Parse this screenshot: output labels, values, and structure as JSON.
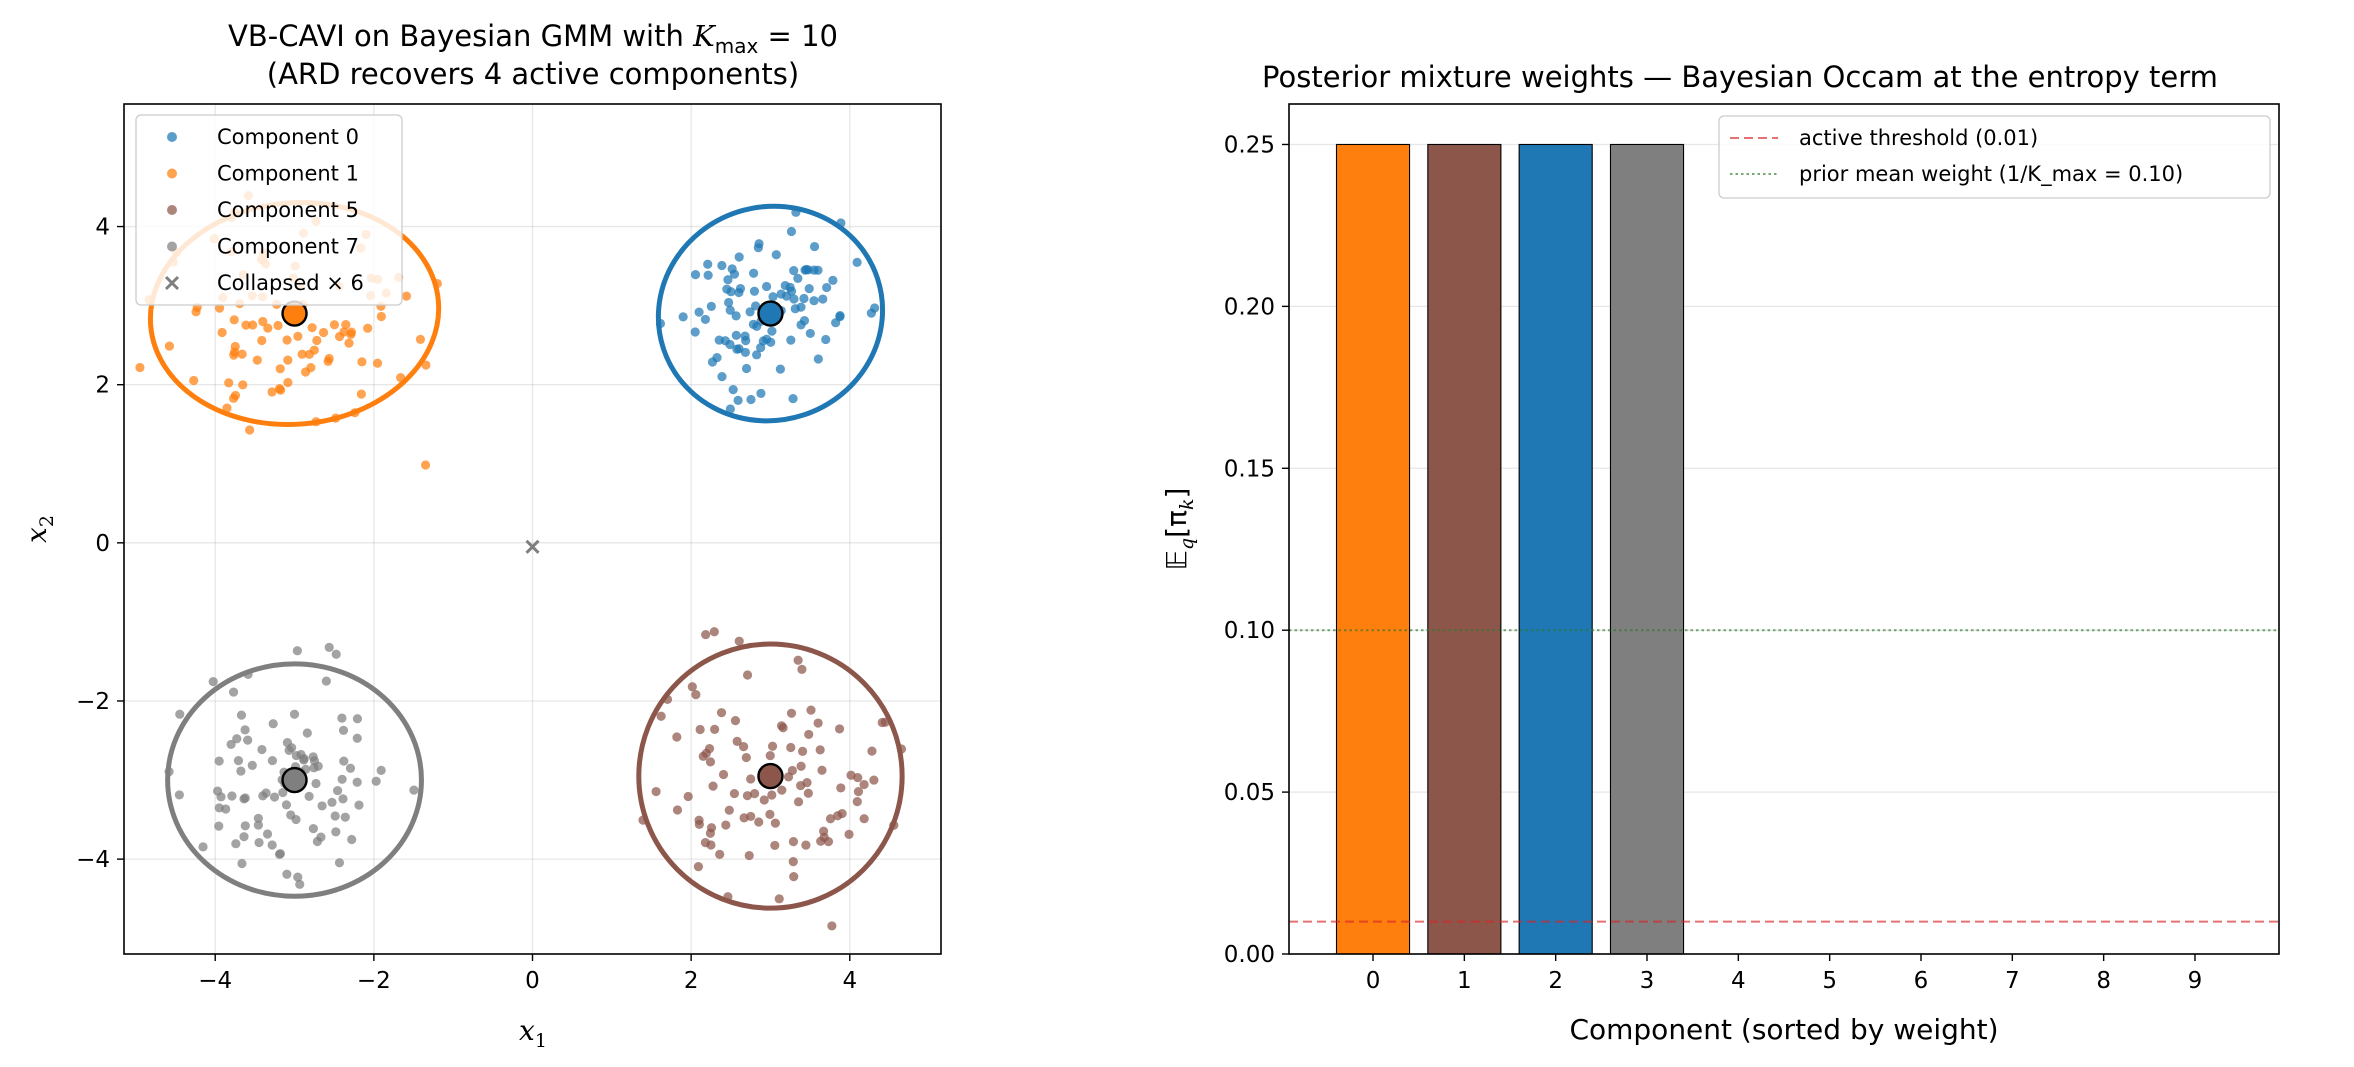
{
  "figure": {
    "background": "#ffffff"
  },
  "chart_data": [
    {
      "type": "scatter",
      "title_line1_prefix": "VB-CAVI on Bayesian GMM with ",
      "title_math": "K",
      "title_math_sub": "max",
      "title_math_suffix": " = 10",
      "title_line2": "(ARD recovers 4 active components)",
      "xlabel": "x",
      "xlabel_sub": "1",
      "ylabel": "x",
      "ylabel_sub": "2",
      "xlim": [
        -5.15,
        5.15
      ],
      "ylim": [
        -5.2,
        5.55
      ],
      "xticks": [
        -4,
        -2,
        0,
        2,
        4
      ],
      "yticks": [
        -4,
        -2,
        0,
        2,
        4
      ],
      "xtick_labels": [
        "−4",
        "−2",
        "0",
        "2",
        "4"
      ],
      "ytick_labels": [
        "−4",
        "−2",
        "0",
        "2",
        "4"
      ],
      "grid": true,
      "legend_position": "upper-left",
      "legend": [
        {
          "label": "Component 0",
          "marker": "dot",
          "color": "#1f77b4"
        },
        {
          "label": "Component 1",
          "marker": "dot",
          "color": "#ff7f0e"
        },
        {
          "label": "Component 5",
          "marker": "dot",
          "color": "#8c564b"
        },
        {
          "label": "Component 7",
          "marker": "dot",
          "color": "#7f7f7f"
        },
        {
          "label": "Collapsed × 6",
          "marker": "x",
          "color": "#7f7f7f"
        }
      ],
      "clusters": [
        {
          "name": "Component 0",
          "color": "#1f77b4",
          "mean": [
            3.0,
            2.9
          ],
          "ellipse": {
            "rx": 1.42,
            "ry": 1.35,
            "angle_deg": 18
          },
          "spread": [
            0.55,
            0.5
          ],
          "n_points": 100,
          "seed": 11
        },
        {
          "name": "Component 1",
          "color": "#ff7f0e",
          "mean": [
            -3.0,
            2.9
          ],
          "ellipse": {
            "rx": 1.82,
            "ry": 1.4,
            "angle_deg": 5
          },
          "spread": [
            0.72,
            0.62
          ],
          "n_points": 100,
          "seed": 23
        },
        {
          "name": "Component 5",
          "color": "#8c564b",
          "mean": [
            3.0,
            -2.95
          ],
          "ellipse": {
            "rx": 1.66,
            "ry": 1.67,
            "angle_deg": 0
          },
          "spread": [
            0.68,
            0.7
          ],
          "n_points": 100,
          "seed": 37
        },
        {
          "name": "Component 7",
          "color": "#7f7f7f",
          "mean": [
            -3.0,
            -3.0
          ],
          "ellipse": {
            "rx": 1.6,
            "ry": 1.47,
            "angle_deg": 0
          },
          "spread": [
            0.62,
            0.58
          ],
          "n_points": 100,
          "seed": 41
        }
      ],
      "collapsed_points": [
        [
          0.0,
          -0.05
        ]
      ],
      "collapsed_color": "#7f7f7f"
    },
    {
      "type": "bar",
      "title": "Posterior mixture weights — Bayesian Occam at the entropy term",
      "xlabel": "Component (sorted by weight)",
      "ylabel": "𝔼",
      "ylabel_sub": "q",
      "ylabel_rest": "[π",
      "ylabel_rest_sub": "k",
      "ylabel_close": "]",
      "categories": [
        0,
        1,
        2,
        3,
        4,
        5,
        6,
        7,
        8,
        9
      ],
      "values": [
        0.25,
        0.25,
        0.25,
        0.25,
        0,
        0,
        0,
        0,
        0,
        0
      ],
      "colors": [
        "#ff7f0e",
        "#8c564b",
        "#1f77b4",
        "#7f7f7f",
        "#cccccc",
        "#cccccc",
        "#cccccc",
        "#cccccc",
        "#cccccc",
        "#cccccc"
      ],
      "xlim": [
        -0.92,
        9.92
      ],
      "ylim": [
        0,
        0.2625
      ],
      "yticks": [
        0.0,
        0.05,
        0.1,
        0.15,
        0.2,
        0.25
      ],
      "ytick_labels": [
        "0.00",
        "0.05",
        "0.10",
        "0.15",
        "0.20",
        "0.25"
      ],
      "grid_y": true,
      "reference_lines": [
        {
          "label": "active threshold (0.01)",
          "y": 0.01,
          "color": "#d62728",
          "style": "dashed"
        },
        {
          "label": "prior mean weight (1/K_max = 0.10)",
          "y": 0.1,
          "color": "#2c7a2c",
          "style": "dotted"
        }
      ],
      "legend_position": "upper-right"
    }
  ]
}
